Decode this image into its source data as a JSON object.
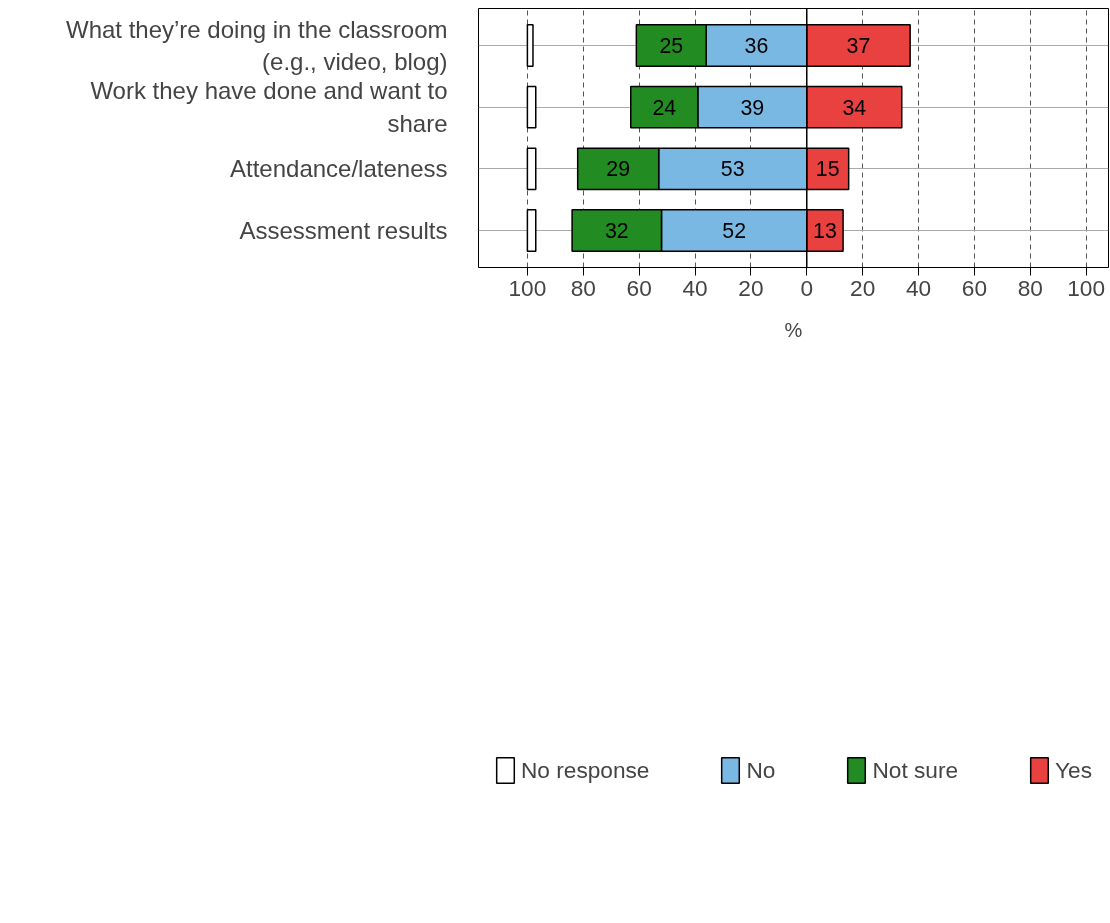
{
  "chart_data": {
    "type": "bar",
    "orientation": "horizontal",
    "categories": [
      "What they’re doing in the classroom (e.g., video, blog)",
      "Work they have done and want to share",
      "Attendance/lateness",
      "Assessment results"
    ],
    "xlabel": "%",
    "series": [
      {
        "name": "No response",
        "color": "#ffffff",
        "values": [
          2,
          3,
          3,
          3
        ],
        "base": [
          -100,
          -100,
          -100,
          -100
        ]
      },
      {
        "name": "No",
        "color": "#7ab8e4",
        "values": [
          36,
          39,
          53,
          52
        ],
        "base": [
          -36,
          -39,
          -53,
          -52
        ],
        "data_labels": true
      },
      {
        "name": "Not sure",
        "color": "#228b22",
        "values": [
          25,
          24,
          29,
          32
        ],
        "base": [
          -61,
          -63,
          -82,
          -84
        ],
        "data_labels": true
      },
      {
        "name": "Yes",
        "color": "#e8413f",
        "values": [
          37,
          34,
          15,
          13
        ],
        "base": [
          0,
          0,
          0,
          0
        ],
        "data_labels": true
      }
    ],
    "xlim": [
      -117.5,
      108
    ],
    "xticks": [
      {
        "value": -100,
        "label": "100"
      },
      {
        "value": -80,
        "label": "80"
      },
      {
        "value": -60,
        "label": "60"
      },
      {
        "value": -40,
        "label": "40"
      },
      {
        "value": -20,
        "label": "20"
      },
      0,
      20,
      40,
      60,
      80,
      100
    ],
    "ref_lines": [
      {
        "axis": "x",
        "value": 0,
        "color": "#000000"
      }
    ],
    "grid": true,
    "legend": "bottom"
  }
}
